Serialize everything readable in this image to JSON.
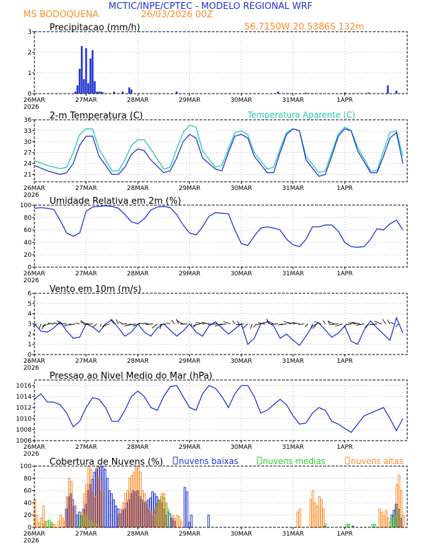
{
  "header": {
    "title": "MCTIC/INPE/CPTEC - MODELO REGIONAL WRF",
    "station": "MS BODOQUENA",
    "run": "26/03/2026 00Z",
    "location": "56.7150W 20.5386S 132m"
  },
  "x_axis": {
    "labels": [
      "26MAR",
      "27MAR",
      "28MAR",
      "29MAR",
      "30MAR",
      "31MAR",
      "1APR"
    ],
    "year": "2026"
  },
  "colors": {
    "blue": "#1e32d2",
    "cyan": "#1ec8b4",
    "green": "#2ad22a",
    "orange": "#ff8c28",
    "black": "#000000",
    "grid": "#a0a0a0"
  },
  "chart_data": [
    {
      "type": "bar",
      "title": "Precipitacao (mm/h)",
      "ylim": [
        0,
        3
      ],
      "yticks": [
        0,
        1,
        2,
        3
      ],
      "x_unit": "hours since 26MAR 00Z",
      "x": [
        19,
        20,
        21,
        22,
        23,
        24,
        25,
        26,
        27,
        28,
        29,
        30,
        31,
        32,
        37,
        41,
        44,
        45,
        66,
        113,
        126,
        144,
        155,
        164,
        168
      ],
      "values": [
        0.1,
        0.4,
        1.2,
        2.3,
        0.7,
        2.2,
        0.5,
        1.7,
        2.1,
        0.6,
        0.1,
        0.1,
        0.1,
        0.05,
        0.1,
        0.1,
        0.3,
        0.2,
        0.1,
        0.1,
        0.05,
        0.05,
        0.05,
        0.4,
        0.15
      ]
    },
    {
      "type": "line",
      "title": "2-m Temperatura (C)",
      "ylim": [
        19,
        36
      ],
      "yticks": [
        21,
        24,
        27,
        30,
        33,
        36
      ],
      "series": [
        {
          "name": "Temperatura Aparente (C)",
          "color": "#1ec8b4",
          "x": [
            0,
            6,
            12,
            15,
            18,
            21,
            24,
            27,
            30,
            36,
            39,
            42,
            45,
            48,
            51,
            54,
            60,
            63,
            66,
            69,
            72,
            75,
            78,
            84,
            87,
            90,
            93,
            96,
            99,
            102,
            108,
            111,
            114,
            117,
            120,
            123,
            126,
            132,
            135,
            138,
            141,
            144,
            147,
            150,
            156,
            159,
            162,
            165,
            168,
            171
          ],
          "y": [
            24.8,
            23.5,
            22.6,
            23,
            27,
            32,
            33.5,
            33.5,
            28,
            22,
            22,
            25,
            29,
            30.5,
            30.5,
            28,
            22.5,
            23,
            28,
            32.5,
            34.5,
            34,
            27.5,
            23,
            23.5,
            28,
            32.5,
            33,
            32,
            27,
            22.5,
            23,
            28,
            32.5,
            33.5,
            33,
            26,
            21.5,
            22,
            27,
            32,
            34,
            33,
            28.5,
            22,
            22,
            27.5,
            32.5,
            33,
            26
          ]
        },
        {
          "name": "",
          "color": "#1e32d2",
          "x": [
            0,
            6,
            12,
            15,
            18,
            21,
            24,
            27,
            30,
            36,
            39,
            42,
            45,
            48,
            51,
            54,
            60,
            63,
            66,
            69,
            72,
            75,
            78,
            84,
            87,
            90,
            93,
            96,
            99,
            102,
            108,
            111,
            114,
            117,
            120,
            123,
            126,
            132,
            135,
            138,
            141,
            144,
            147,
            150,
            156,
            159,
            162,
            165,
            168,
            171
          ],
          "y": [
            23.5,
            22,
            21,
            21.5,
            24,
            29,
            31.5,
            31.5,
            26,
            21,
            21,
            23,
            26.5,
            28,
            27.5,
            25,
            21.5,
            22,
            25.5,
            30,
            32,
            31,
            25.5,
            22.5,
            22,
            27,
            31.5,
            32,
            31,
            26,
            21.5,
            21.5,
            27,
            32,
            33.5,
            33,
            25,
            20.5,
            21,
            26,
            31.5,
            33.5,
            33,
            27.5,
            21.5,
            21.5,
            26,
            31,
            32.5,
            24
          ]
        }
      ]
    },
    {
      "type": "line",
      "title": "Umidade Relativa em 2m (%)",
      "ylim": [
        0,
        100
      ],
      "yticks": [
        0,
        20,
        40,
        60,
        80,
        100
      ],
      "series": [
        {
          "name": "",
          "color": "#1e32d2",
          "x": [
            0,
            3,
            6,
            9,
            12,
            15,
            18,
            21,
            24,
            27,
            30,
            33,
            36,
            39,
            42,
            45,
            48,
            51,
            54,
            57,
            60,
            63,
            66,
            69,
            72,
            75,
            78,
            81,
            84,
            87,
            90,
            93,
            96,
            99,
            102,
            105,
            108,
            111,
            114,
            117,
            120,
            123,
            126,
            129,
            132,
            135,
            138,
            141,
            144,
            147,
            150,
            153,
            156,
            159,
            162,
            165,
            168,
            171
          ],
          "y": [
            95,
            96,
            95,
            93,
            75,
            55,
            50,
            55,
            90,
            97,
            98,
            99,
            98,
            95,
            85,
            73,
            70,
            78,
            92,
            97,
            98,
            96,
            85,
            68,
            55,
            52,
            65,
            82,
            88,
            87,
            86,
            60,
            38,
            35,
            50,
            63,
            65,
            63,
            60,
            45,
            36,
            33,
            45,
            65,
            65,
            68,
            68,
            58,
            40,
            33,
            32,
            33,
            45,
            62,
            60,
            70,
            76,
            60
          ]
        }
      ]
    },
    {
      "type": "line",
      "title": "Vento em 10m (m/s)",
      "ylim": [
        0,
        6
      ],
      "yticks": [
        0,
        1,
        2,
        3,
        4,
        5,
        6
      ],
      "series": [
        {
          "name": "",
          "color": "#1e32d2",
          "x": [
            0,
            3,
            6,
            9,
            12,
            15,
            18,
            21,
            24,
            27,
            30,
            33,
            36,
            39,
            42,
            45,
            48,
            51,
            54,
            57,
            60,
            63,
            66,
            69,
            72,
            75,
            78,
            81,
            84,
            87,
            90,
            93,
            96,
            99,
            102,
            105,
            108,
            111,
            114,
            117,
            120,
            123,
            126,
            129,
            132,
            135,
            138,
            141,
            144,
            147,
            150,
            153,
            156,
            159,
            162,
            165,
            168,
            171
          ],
          "y": [
            3.0,
            2.3,
            2.2,
            2.6,
            3.2,
            2.3,
            1.6,
            1.7,
            3.0,
            2.7,
            2.2,
            3.0,
            3.4,
            2.6,
            1.8,
            2.2,
            3.0,
            2.2,
            1.8,
            2.6,
            3.0,
            2.4,
            1.8,
            2.3,
            3.0,
            2.2,
            1.8,
            2.8,
            3.2,
            2.6,
            2.0,
            2.5,
            3.0,
            1.0,
            1.6,
            3.0,
            3.2,
            2.8,
            1.6,
            2.0,
            1.4,
            0.9,
            1.8,
            2.8,
            3.1,
            2.4,
            1.7,
            2.1,
            2.8,
            1.3,
            1.0,
            2.4,
            3.3,
            2.6,
            2.0,
            1.4,
            3.6,
            2.1
          ]
        }
      ]
    },
    {
      "type": "line",
      "title": "Pressao ao Nivel Medio do Mar (hPa)",
      "ylim": [
        1006,
        1017
      ],
      "yticks": [
        1006,
        1008,
        1010,
        1012,
        1014,
        1016
      ],
      "series": [
        {
          "name": "",
          "color": "#1e32d2",
          "x": [
            0,
            3,
            6,
            9,
            12,
            15,
            18,
            21,
            24,
            27,
            30,
            33,
            36,
            39,
            42,
            45,
            48,
            51,
            54,
            57,
            60,
            63,
            66,
            69,
            72,
            75,
            78,
            81,
            84,
            87,
            90,
            93,
            96,
            99,
            102,
            105,
            108,
            111,
            114,
            117,
            120,
            123,
            126,
            129,
            132,
            135,
            138,
            141,
            144,
            147,
            150,
            153,
            156,
            159,
            162,
            165,
            168,
            171
          ],
          "y": [
            1013.5,
            1014.5,
            1013,
            1013,
            1012.5,
            1011,
            1008.5,
            1009.5,
            1012,
            1013.8,
            1013.5,
            1012,
            1009.5,
            1009.5,
            1011.5,
            1014,
            1015,
            1014,
            1012,
            1011.5,
            1014,
            1015.8,
            1016,
            1014,
            1012,
            1011.5,
            1014.5,
            1016,
            1015.5,
            1014,
            1012,
            1014.5,
            1016,
            1016,
            1014,
            1011,
            1011.5,
            1012.5,
            1013.5,
            1012.5,
            1010.5,
            1009,
            1009.2,
            1011,
            1012,
            1011.5,
            1009.5,
            1009,
            1008.2,
            1007.5,
            1009,
            1010.5,
            1011,
            1011.5,
            1012,
            1010,
            1007.8,
            1010
          ]
        }
      ]
    },
    {
      "type": "bar",
      "title": "Cobertura de Nuvens (%)",
      "ylim": [
        0,
        100
      ],
      "yticks": [
        0,
        20,
        40,
        60,
        80,
        100
      ],
      "legend_position": "top",
      "series": [
        {
          "name": "nuvens baixas",
          "color": "#1e32d2",
          "x": [
            15,
            16,
            17,
            18,
            19,
            20,
            21,
            22,
            23,
            24,
            25,
            26,
            27,
            28,
            29,
            30,
            31,
            32,
            33,
            34,
            35,
            36,
            37,
            38,
            39,
            40,
            41,
            42,
            43,
            44,
            45,
            46,
            47,
            48,
            49,
            50,
            51,
            52,
            53,
            54,
            55,
            56,
            57,
            58,
            59,
            60,
            61,
            62,
            63,
            64,
            65,
            70,
            71,
            72,
            73,
            81,
            135,
            148,
            166,
            167,
            168,
            169,
            170
          ],
          "values": [
            30,
            50,
            55,
            45,
            35,
            20,
            25,
            18,
            30,
            38,
            60,
            70,
            78,
            90,
            95,
            98,
            100,
            100,
            95,
            80,
            60,
            55,
            45,
            35,
            30,
            22,
            28,
            30,
            40,
            45,
            55,
            60,
            58,
            60,
            50,
            45,
            40,
            42,
            45,
            48,
            58,
            55,
            50,
            45,
            40,
            30,
            20,
            25,
            22,
            15,
            10,
            65,
            58,
            8,
            20,
            20,
            2,
            2,
            20,
            28,
            38,
            30,
            15
          ]
        },
        {
          "name": "nuvens medias",
          "color": "#2ad22a",
          "x": [
            4,
            5,
            6,
            7,
            8,
            21,
            22,
            23,
            24,
            25,
            26,
            27,
            28,
            29,
            56,
            57,
            58,
            59,
            60,
            61,
            62,
            135,
            145,
            146,
            157,
            158,
            165,
            166,
            167,
            168,
            169
          ],
          "values": [
            5,
            8,
            10,
            12,
            8,
            15,
            20,
            22,
            18,
            12,
            10,
            8,
            6,
            5,
            20,
            35,
            45,
            50,
            48,
            40,
            30,
            6,
            5,
            5,
            5,
            5,
            8,
            15,
            20,
            30,
            25
          ]
        },
        {
          "name": "nuvens altas",
          "color": "#ff8c28",
          "x": [
            0,
            1,
            2,
            3,
            4,
            5,
            8,
            9,
            11,
            12,
            13,
            14,
            15,
            16,
            17,
            18,
            22,
            23,
            24,
            25,
            26,
            27,
            28,
            29,
            30,
            31,
            39,
            40,
            41,
            42,
            43,
            44,
            45,
            46,
            47,
            48,
            49,
            50,
            51,
            52,
            53,
            54,
            55,
            56,
            57,
            58,
            59,
            60,
            61,
            64,
            65,
            66,
            67,
            68,
            122,
            123,
            128,
            129,
            130,
            131,
            132,
            133,
            134,
            160,
            161,
            162,
            163,
            164,
            168,
            169,
            170,
            171
          ],
          "values": [
            45,
            20,
            8,
            15,
            35,
            10,
            5,
            5,
            10,
            20,
            15,
            10,
            50,
            80,
            75,
            35,
            25,
            55,
            70,
            100,
            95,
            60,
            50,
            100,
            80,
            60,
            20,
            30,
            40,
            55,
            60,
            80,
            85,
            90,
            100,
            100,
            90,
            60,
            55,
            40,
            30,
            25,
            20,
            30,
            40,
            45,
            55,
            55,
            40,
            20,
            15,
            20,
            18,
            10,
            25,
            30,
            45,
            60,
            40,
            35,
            50,
            45,
            30,
            30,
            25,
            20,
            28,
            15,
            70,
            85,
            60,
            20
          ]
        }
      ]
    }
  ]
}
